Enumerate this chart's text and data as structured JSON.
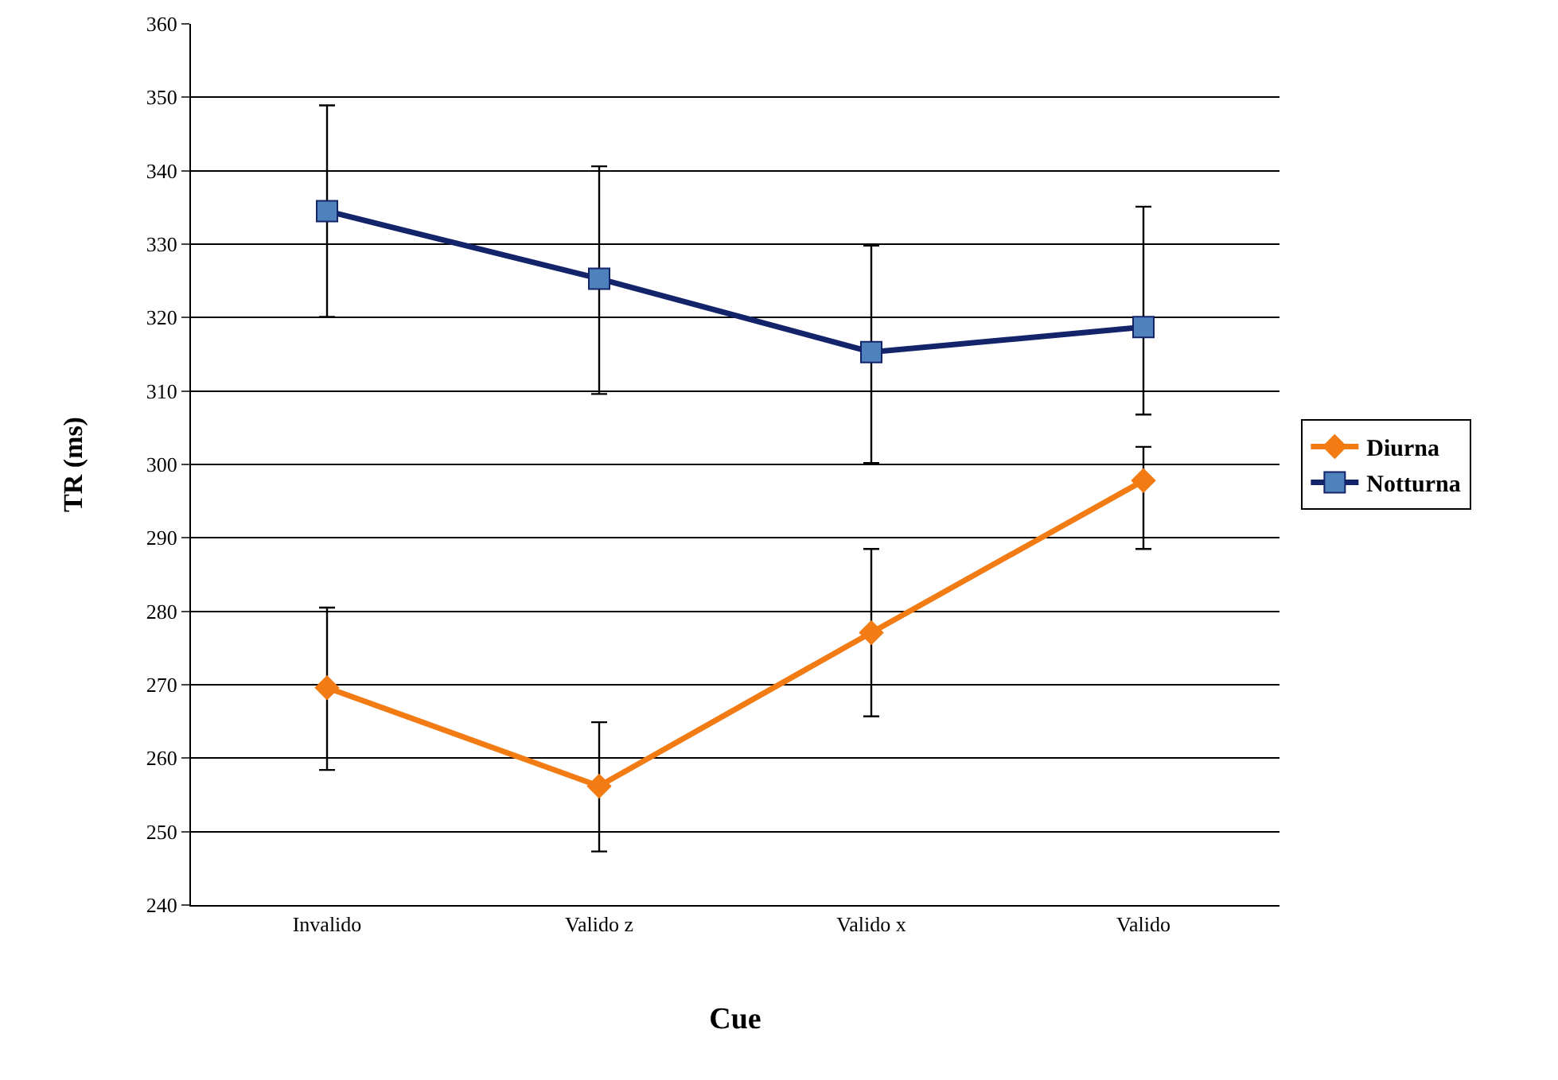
{
  "chart_data": {
    "type": "line",
    "xlabel": "Cue",
    "ylabel": "TR (ms)",
    "categories": [
      "Invalido",
      "Valido z",
      "Valido x",
      "Valido"
    ],
    "series": [
      {
        "name": "Diurna",
        "color": "#f27b13",
        "marker": "diamond",
        "values": [
          269.6,
          256.2,
          277.1,
          297.8
        ],
        "errors": [
          [
            258.4,
            280.5
          ],
          [
            247.3,
            264.9
          ],
          [
            265.7,
            288.5
          ],
          [
            288.5,
            302.4
          ]
        ]
      },
      {
        "name": "Notturna",
        "color": "#13246b",
        "marker": "square",
        "values": [
          334.5,
          325.3,
          315.3,
          318.7
        ],
        "errors": [
          [
            320.1,
            348.9
          ],
          [
            309.6,
            340.6
          ],
          [
            300.2,
            329.8
          ],
          [
            306.8,
            335.1
          ]
        ]
      }
    ],
    "ylim": [
      240,
      360
    ],
    "yticks": [
      240,
      250,
      260,
      270,
      280,
      290,
      300,
      310,
      320,
      330,
      340,
      350,
      360
    ],
    "grid": "y",
    "legend": "right",
    "line_style": "solid"
  }
}
